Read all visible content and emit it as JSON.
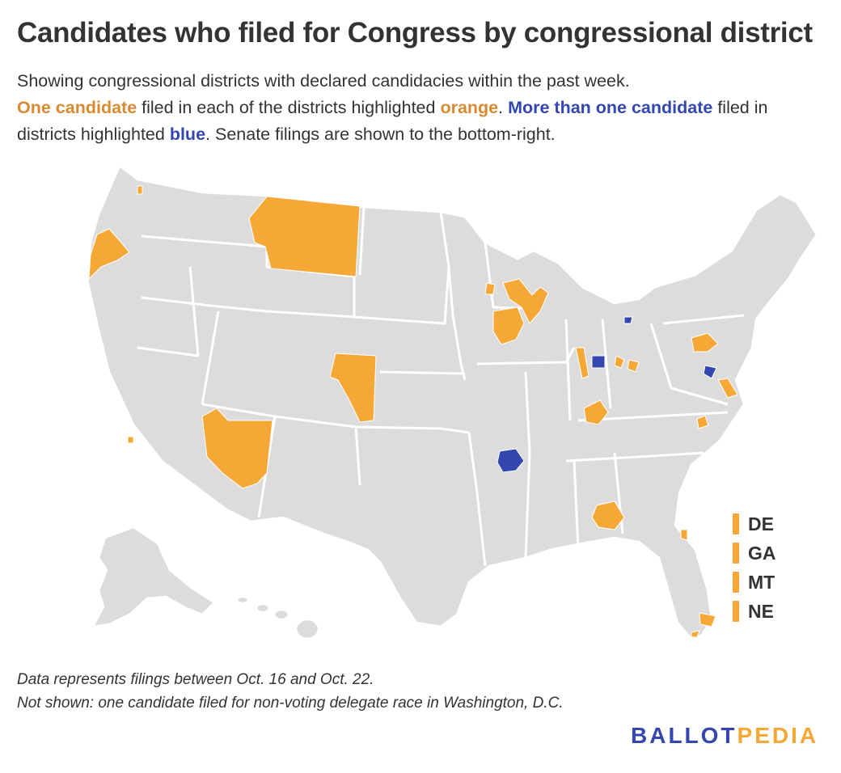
{
  "title": "Candidates who filed for Congress by congressional district",
  "subtitle": {
    "line1": "Showing congressional districts with declared candidacies within the past week.",
    "one_candidate": "One candidate",
    "filed_in_each": " filed in each of the districts highlighted ",
    "orange_word": "orange",
    "period1": ". ",
    "more_than_one": "More than one candidate",
    "filed_in_districts": " filed in districts highlighted ",
    "blue_word": "blue",
    "rest": ". Senate filings are shown to the bottom-right."
  },
  "colors": {
    "one_candidate": "#f5a836",
    "more_than_one": "#3446b0",
    "no_filing": "#dcdcdc",
    "border": "#ffffff"
  },
  "senate_filings": [
    "DE",
    "GA",
    "MT",
    "NE"
  ],
  "notes": {
    "line1": "Data represents filings between Oct. 16 and Oct. 22.",
    "line2": "Not shown: one candidate filed for non-voting delegate race in Washington, D.C."
  },
  "logo": {
    "part1": "BALLOT",
    "part2": "PEDIA"
  }
}
